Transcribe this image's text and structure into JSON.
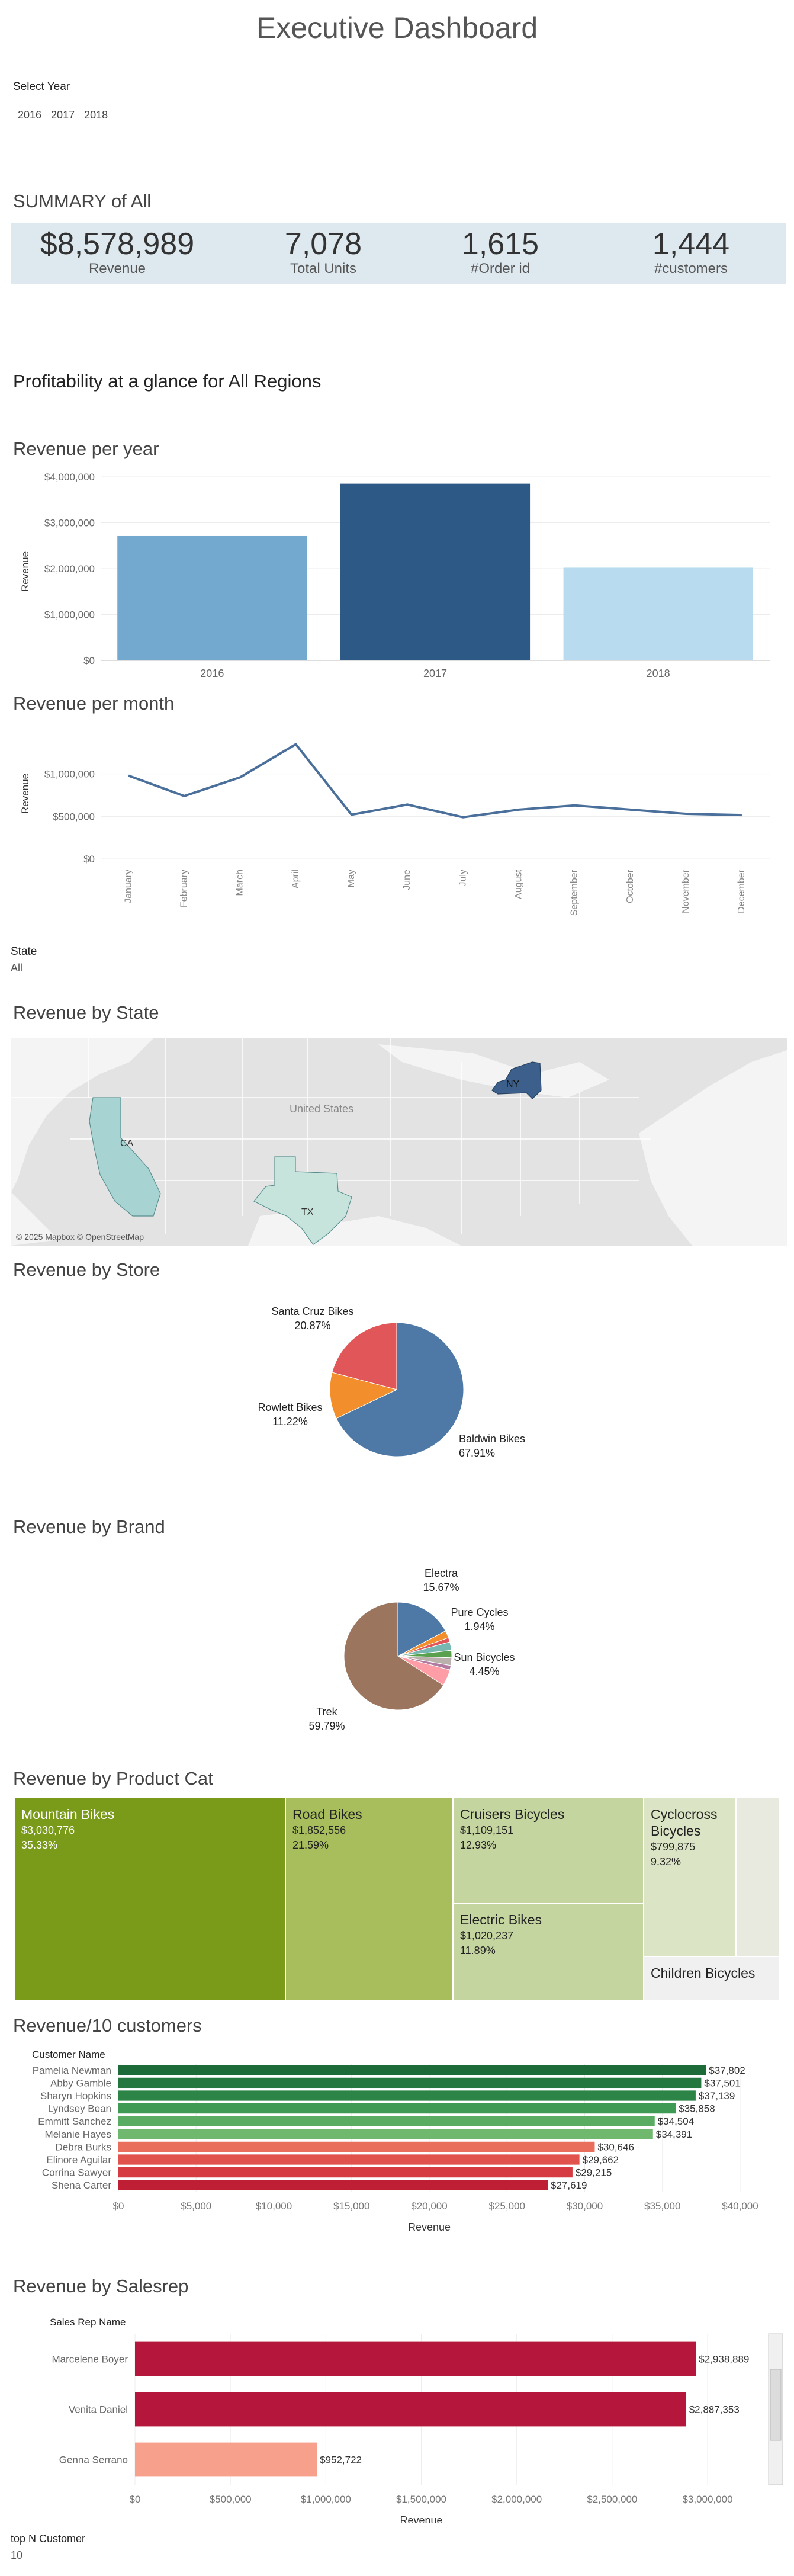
{
  "header": {
    "title": "Executive Dashboard"
  },
  "year_filter": {
    "label": "Select Year",
    "options": [
      "2016",
      "2017",
      "2018"
    ]
  },
  "summary": {
    "title": "SUMMARY of All",
    "kpis": [
      {
        "value": "$8,578,989",
        "label": "Revenue"
      },
      {
        "value": "7,078",
        "label": "Total Units"
      },
      {
        "value": "1,615",
        "label": "#Order id"
      },
      {
        "value": "1,444",
        "label": "#customers"
      }
    ]
  },
  "profit_title": "Profitability at a glance for All Regions",
  "state_filter": {
    "label": "State",
    "value": "All"
  },
  "top_n": {
    "label": "top N Customer",
    "value": "10"
  },
  "colors": {
    "dark_blue": "#2d5987",
    "mid_blue": "#74a9cf",
    "light_blue": "#b8dbef",
    "line": "#4a6f9a"
  },
  "chart_data": [
    {
      "id": "revenue_per_year",
      "type": "bar",
      "title": "Revenue per year",
      "ylabel": "Revenue",
      "categories": [
        "2016",
        "2017",
        "2018"
      ],
      "values": [
        2710000,
        3850000,
        2020000
      ],
      "ylim": [
        0,
        4000000
      ],
      "yticks": [
        "$0",
        "$1,000,000",
        "$2,000,000",
        "$3,000,000",
        "$4,000,000"
      ],
      "bar_colors": [
        "#74a9cf",
        "#2d5987",
        "#b8dbef"
      ]
    },
    {
      "id": "revenue_per_month",
      "type": "line",
      "title": "Revenue per month",
      "ylabel": "Revenue",
      "categories": [
        "January",
        "February",
        "March",
        "April",
        "May",
        "June",
        "July",
        "August",
        "September",
        "October",
        "November",
        "December"
      ],
      "values": [
        980000,
        740000,
        960000,
        1350000,
        520000,
        640000,
        490000,
        580000,
        630000,
        580000,
        530000,
        515000
      ],
      "ylim": [
        0,
        1500000
      ],
      "yticks": [
        "$0",
        "$500,000",
        "$1,000,000"
      ]
    },
    {
      "id": "revenue_by_state",
      "type": "map",
      "title": "Revenue by State",
      "country_label": "United States",
      "states": [
        "CA",
        "TX",
        "NY"
      ],
      "attribution": "© 2025 Mapbox © OpenStreetMap"
    },
    {
      "id": "revenue_by_store",
      "type": "pie",
      "title": "Revenue by Store",
      "slices": [
        {
          "name": "Baldwin Bikes",
          "pct": "67.91%",
          "value": 67.91,
          "color": "#4e79a7"
        },
        {
          "name": "Rowlett Bikes",
          "pct": "11.22%",
          "value": 11.22,
          "color": "#f28e2b"
        },
        {
          "name": "Santa Cruz Bikes",
          "pct": "20.87%",
          "value": 20.87,
          "color": "#e15759"
        }
      ]
    },
    {
      "id": "revenue_by_brand",
      "type": "pie",
      "title": "Revenue by Brand",
      "slices": [
        {
          "name": "Electra",
          "pct": "15.67%",
          "value": 15.67,
          "color": "#4e79a7"
        },
        {
          "name": "Pure Cycles",
          "pct": "1.94%",
          "value": 1.94,
          "color": "#f28e2b"
        },
        {
          "name": "",
          "pct": "",
          "value": 1.2,
          "color": "#e15759"
        },
        {
          "name": "",
          "pct": "",
          "value": 2.3,
          "color": "#76b7b2"
        },
        {
          "name": "",
          "pct": "",
          "value": 2.0,
          "color": "#59a14f"
        },
        {
          "name": "",
          "pct": "",
          "value": 2.1,
          "color": "#bab0ac"
        },
        {
          "name": "",
          "pct": "",
          "value": 1.2,
          "color": "#b07aa1"
        },
        {
          "name": "Sun Bicycles",
          "pct": "4.45%",
          "value": 4.45,
          "color": "#ff9da7"
        },
        {
          "name": "Trek",
          "pct": "59.79%",
          "value": 59.79,
          "color": "#9c755f"
        }
      ]
    },
    {
      "id": "revenue_by_product_cat",
      "type": "treemap",
      "title": "Revenue by Product Cat",
      "items": [
        {
          "name": "Mountain Bikes",
          "value": "$3,030,776",
          "pct": "35.33%",
          "color": "#7a9a1a"
        },
        {
          "name": "Road Bikes",
          "value": "$1,852,556",
          "pct": "21.59%",
          "color": "#a8bd5c"
        },
        {
          "name": "Cruisers Bicycles",
          "value": "$1,109,151",
          "pct": "12.93%",
          "color": "#c5d5a0"
        },
        {
          "name": "Electric Bikes",
          "value": "$1,020,237",
          "pct": "11.89%",
          "color": "#c5d5a0"
        },
        {
          "name": "Cyclocross Bicycles",
          "value": "$799,875",
          "pct": "9.32%",
          "color": "#dbe4c4"
        },
        {
          "name": "Children Bicycles",
          "value": "",
          "pct": "",
          "color": "#f0f0f0"
        },
        {
          "name": "",
          "value": "",
          "pct": "",
          "color": "#e8eadf"
        }
      ]
    },
    {
      "id": "revenue_top10_customers",
      "type": "bar",
      "orientation": "horizontal",
      "title": "Revenue/10 customers",
      "column_header": "Customer Name",
      "xlabel": "Revenue",
      "xlim": [
        0,
        40000
      ],
      "xticks": [
        "$0",
        "$5,000",
        "$10,000",
        "$15,000",
        "$20,000",
        "$25,000",
        "$30,000",
        "$35,000",
        "$40,000"
      ],
      "rows": [
        {
          "name": "Pamelia Newman",
          "value": 37802,
          "label": "$37,802",
          "color": "#1e6b3a"
        },
        {
          "name": "Abby Gamble",
          "value": 37501,
          "label": "$37,501",
          "color": "#24773f"
        },
        {
          "name": "Sharyn Hopkins",
          "value": 37139,
          "label": "$37,139",
          "color": "#2c8447"
        },
        {
          "name": "Lyndsey Bean",
          "value": 35858,
          "label": "$35,858",
          "color": "#3f9a53"
        },
        {
          "name": "Emmitt Sanchez",
          "value": 34504,
          "label": "$34,504",
          "color": "#5aac62"
        },
        {
          "name": "Melanie Hayes",
          "value": 34391,
          "label": "$34,391",
          "color": "#6fb86d"
        },
        {
          "name": "Debra Burks",
          "value": 30646,
          "label": "$30,646",
          "color": "#e96f5c"
        },
        {
          "name": "Elinore Aguilar",
          "value": 29662,
          "label": "$29,662",
          "color": "#e0524b"
        },
        {
          "name": "Corrina Sawyer",
          "value": 29215,
          "label": "$29,215",
          "color": "#d53b40"
        },
        {
          "name": "Shena Carter",
          "value": 27619,
          "label": "$27,619",
          "color": "#bf1f35"
        }
      ]
    },
    {
      "id": "revenue_by_salesrep",
      "type": "bar",
      "orientation": "horizontal",
      "title": "Revenue by Salesrep",
      "column_header": "Sales Rep Name",
      "xlabel": "Revenue",
      "xlim": [
        0,
        3000000
      ],
      "xticks": [
        "$0",
        "$500,000",
        "$1,000,000",
        "$1,500,000",
        "$2,000,000",
        "$2,500,000",
        "$3,000,000"
      ],
      "rows": [
        {
          "name": "Marcelene Boyer",
          "value": 2938889,
          "label": "$2,938,889",
          "color": "#b5173c"
        },
        {
          "name": "Venita Daniel",
          "value": 2887353,
          "label": "$2,887,353",
          "color": "#b5173c"
        },
        {
          "name": "Genna Serrano",
          "value": 952722,
          "label": "$952,722",
          "color": "#f7a08c"
        }
      ]
    }
  ]
}
